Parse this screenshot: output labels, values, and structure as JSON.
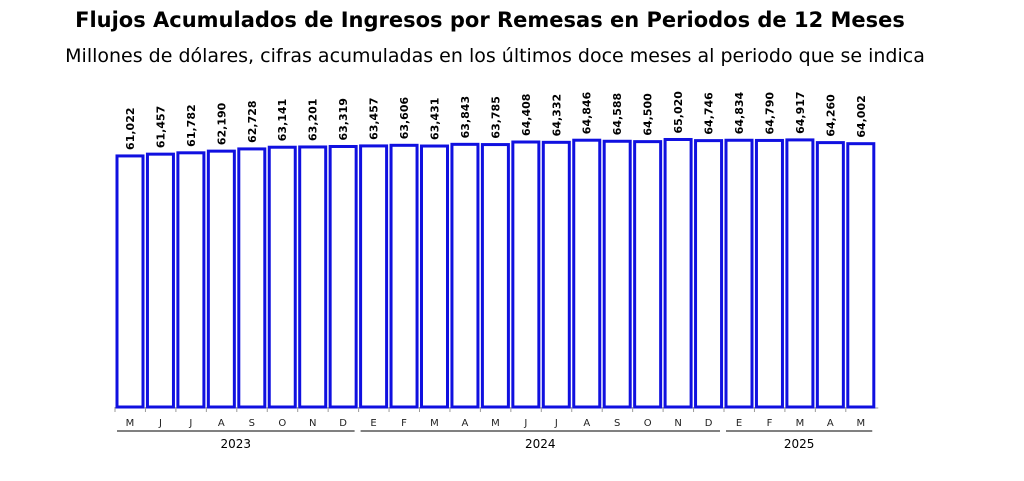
{
  "chart_data": {
    "type": "bar",
    "title": "Flujos Acumulados de Ingresos por Remesas en Periodos de 12 Meses",
    "subtitle": "Millones de dólares, cifras acumuladas en los últimos doce meses al periodo que se indica",
    "categories": [
      "M",
      "J",
      "J",
      "A",
      "S",
      "O",
      "N",
      "D",
      "E",
      "F",
      "M",
      "A",
      "M",
      "J",
      "J",
      "A",
      "S",
      "O",
      "N",
      "D",
      "E",
      "F",
      "M",
      "A",
      "M"
    ],
    "years": [
      {
        "label": "2023",
        "count": 8
      },
      {
        "label": "2024",
        "count": 12
      },
      {
        "label": "2025",
        "count": 5
      }
    ],
    "values": [
      61022,
      61457,
      61782,
      62190,
      62728,
      63141,
      63201,
      63319,
      63457,
      63606,
      63431,
      63843,
      63785,
      64408,
      64332,
      64846,
      64588,
      64500,
      65020,
      64746,
      64834,
      64790,
      64917,
      64260,
      64002
    ],
    "data_labels": [
      "61,022",
      "61,457",
      "61,782",
      "62,190",
      "62,728",
      "63,141",
      "63,201",
      "63,319",
      "63,457",
      "63,606",
      "63,431",
      "63,843",
      "63,785",
      "64,408",
      "64,332",
      "64,846",
      "64,588",
      "64,500",
      "65,020",
      "64,746",
      "64,834",
      "64,790",
      "64,917",
      "64,260",
      "64,002"
    ],
    "ylim": [
      0,
      70000
    ],
    "grid": false,
    "bar_color": "#1010e0"
  }
}
